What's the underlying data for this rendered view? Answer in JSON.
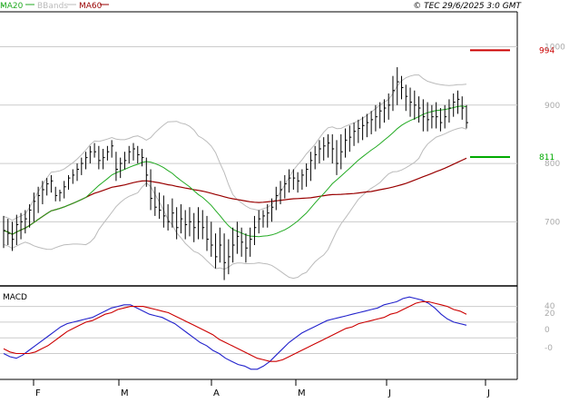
{
  "legend": {
    "ma20_label": "MA20",
    "bbands_label": "BBands",
    "ma60_label": "MA60"
  },
  "credit": "© TEC 29/6/2025 3:0 GMT",
  "macd_label": "MACD",
  "colors": {
    "ma20": "#22aa22",
    "bbands": "#bbbbbb",
    "ma60": "#990000",
    "price": "#000000",
    "macd_line": "#2222cc",
    "signal_line": "#cc0000",
    "resistance": "#cc0000",
    "support": "#00aa00",
    "grid": "#cccccc"
  },
  "chart_data": [
    {
      "type": "line",
      "title": "",
      "x_labels": [
        "F",
        "M",
        "A",
        "M",
        "J",
        "J"
      ],
      "y_ticks": [
        "700",
        "800",
        "900",
        "1000"
      ],
      "ylim": [
        590,
        1060
      ],
      "grid": true,
      "legend_position": "top-left",
      "levels": [
        {
          "label": "994",
          "value": 994,
          "role": "resistance"
        },
        {
          "label": "811",
          "value": 811,
          "role": "support"
        }
      ],
      "price_bars_hlc": [
        [
          710,
          655,
          685
        ],
        [
          705,
          660,
          680
        ],
        [
          700,
          650,
          670
        ],
        [
          712,
          660,
          695
        ],
        [
          715,
          670,
          700
        ],
        [
          720,
          680,
          705
        ],
        [
          730,
          690,
          720
        ],
        [
          750,
          700,
          735
        ],
        [
          760,
          715,
          745
        ],
        [
          770,
          730,
          755
        ],
        [
          775,
          745,
          765
        ],
        [
          780,
          750,
          770
        ],
        [
          760,
          735,
          745
        ],
        [
          755,
          735,
          750
        ],
        [
          770,
          740,
          760
        ],
        [
          780,
          755,
          775
        ],
        [
          790,
          765,
          780
        ],
        [
          800,
          770,
          790
        ],
        [
          810,
          780,
          800
        ],
        [
          820,
          790,
          810
        ],
        [
          830,
          800,
          820
        ],
        [
          835,
          810,
          820
        ],
        [
          830,
          790,
          805
        ],
        [
          825,
          790,
          810
        ],
        [
          830,
          805,
          820
        ],
        [
          840,
          810,
          830
        ],
        [
          820,
          770,
          790
        ],
        [
          810,
          775,
          800
        ],
        [
          820,
          790,
          805
        ],
        [
          830,
          800,
          820
        ],
        [
          835,
          805,
          825
        ],
        [
          830,
          800,
          815
        ],
        [
          825,
          795,
          810
        ],
        [
          810,
          760,
          780
        ],
        [
          790,
          720,
          740
        ],
        [
          760,
          710,
          725
        ],
        [
          750,
          705,
          720
        ],
        [
          745,
          690,
          710
        ],
        [
          730,
          685,
          700
        ],
        [
          740,
          690,
          715
        ],
        [
          725,
          670,
          690
        ],
        [
          730,
          680,
          705
        ],
        [
          720,
          670,
          695
        ],
        [
          725,
          675,
          700
        ],
        [
          715,
          665,
          690
        ],
        [
          725,
          670,
          700
        ],
        [
          720,
          670,
          690
        ],
        [
          710,
          650,
          670
        ],
        [
          700,
          640,
          660
        ],
        [
          680,
          620,
          640
        ],
        [
          690,
          630,
          660
        ],
        [
          680,
          600,
          630
        ],
        [
          670,
          610,
          640
        ],
        [
          690,
          630,
          660
        ],
        [
          700,
          645,
          675
        ],
        [
          690,
          640,
          665
        ],
        [
          680,
          630,
          655
        ],
        [
          690,
          640,
          670
        ],
        [
          710,
          660,
          690
        ],
        [
          720,
          680,
          705
        ],
        [
          720,
          690,
          710
        ],
        [
          730,
          690,
          715
        ],
        [
          740,
          700,
          725
        ],
        [
          760,
          720,
          745
        ],
        [
          770,
          730,
          755
        ],
        [
          780,
          740,
          765
        ],
        [
          790,
          750,
          775
        ],
        [
          790,
          755,
          775
        ],
        [
          785,
          750,
          770
        ],
        [
          790,
          755,
          780
        ],
        [
          800,
          760,
          790
        ],
        [
          820,
          770,
          805
        ],
        [
          830,
          790,
          815
        ],
        [
          840,
          800,
          825
        ],
        [
          845,
          805,
          830
        ],
        [
          850,
          810,
          835
        ],
        [
          850,
          800,
          825
        ],
        [
          840,
          780,
          800
        ],
        [
          850,
          790,
          820
        ],
        [
          860,
          810,
          840
        ],
        [
          865,
          820,
          845
        ],
        [
          870,
          830,
          855
        ],
        [
          875,
          835,
          860
        ],
        [
          880,
          840,
          865
        ],
        [
          885,
          845,
          870
        ],
        [
          890,
          850,
          875
        ],
        [
          900,
          855,
          880
        ],
        [
          905,
          860,
          890
        ],
        [
          910,
          870,
          895
        ],
        [
          920,
          875,
          900
        ],
        [
          950,
          890,
          925
        ],
        [
          965,
          900,
          940
        ],
        [
          950,
          910,
          930
        ],
        [
          935,
          890,
          915
        ],
        [
          930,
          880,
          905
        ],
        [
          925,
          875,
          900
        ],
        [
          915,
          870,
          895
        ],
        [
          910,
          855,
          880
        ],
        [
          905,
          855,
          875
        ],
        [
          900,
          860,
          880
        ],
        [
          905,
          860,
          880
        ],
        [
          895,
          855,
          870
        ],
        [
          900,
          860,
          880
        ],
        [
          910,
          870,
          895
        ],
        [
          920,
          880,
          905
        ],
        [
          925,
          885,
          910
        ],
        [
          915,
          875,
          895
        ],
        [
          900,
          860,
          870
        ]
      ]
    },
    {
      "type": "line",
      "title": "MACD",
      "y_ticks": [
        "-0",
        "0",
        "20",
        "40"
      ],
      "grid": true,
      "series": [
        {
          "role": "macd",
          "values": [
            -5,
            -7,
            -8,
            -6,
            -3,
            0,
            3,
            6,
            9,
            12,
            14,
            15,
            16,
            17,
            18,
            20,
            22,
            24,
            25,
            26,
            26,
            24,
            22,
            20,
            19,
            18,
            16,
            14,
            11,
            8,
            5,
            2,
            0,
            -3,
            -5,
            -8,
            -10,
            -12,
            -13,
            -15,
            -15,
            -13,
            -10,
            -6,
            -2,
            2,
            5,
            8,
            10,
            12,
            14,
            16,
            17,
            18,
            19,
            20,
            21,
            22,
            23,
            24,
            26,
            27,
            28,
            30,
            31,
            30,
            29,
            27,
            24,
            20,
            17,
            15,
            14,
            13
          ]
        },
        {
          "role": "signal",
          "values": [
            -2,
            -4,
            -5,
            -5,
            -5,
            -4,
            -2,
            0,
            3,
            6,
            9,
            11,
            13,
            15,
            16,
            18,
            20,
            21,
            23,
            24,
            25,
            25,
            25,
            24,
            23,
            22,
            21,
            19,
            17,
            15,
            13,
            11,
            9,
            7,
            4,
            2,
            0,
            -2,
            -4,
            -6,
            -8,
            -9,
            -10,
            -10,
            -9,
            -7,
            -5,
            -3,
            -1,
            1,
            3,
            5,
            7,
            9,
            11,
            12,
            14,
            15,
            16,
            17,
            18,
            20,
            21,
            23,
            25,
            27,
            28,
            28,
            27,
            26,
            25,
            23,
            22,
            20
          ]
        }
      ]
    }
  ]
}
